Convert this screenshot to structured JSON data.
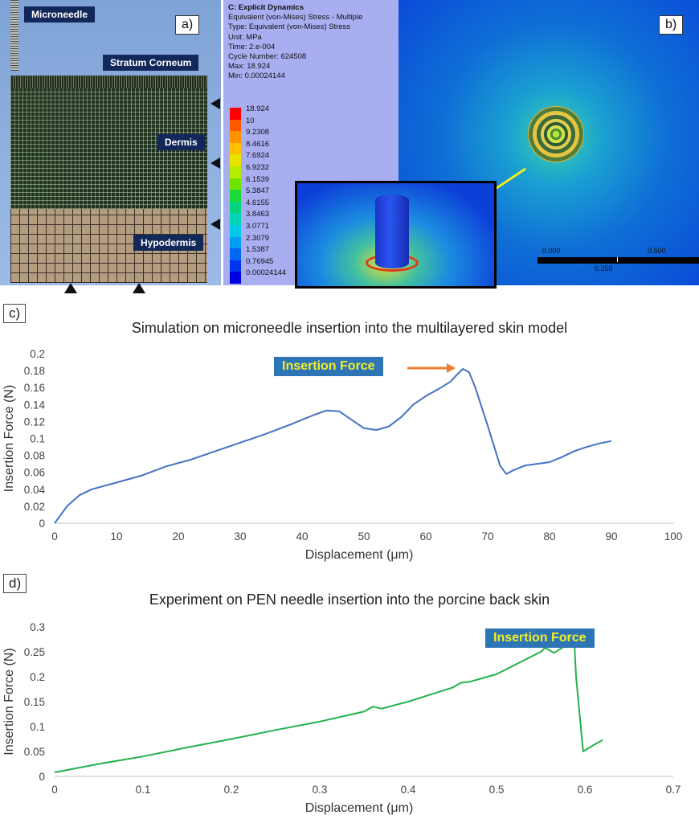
{
  "panel_a": {
    "letter": "a)",
    "labels": {
      "microneedle": "Microneedle",
      "stratum_corneum": "Stratum Corneum",
      "dermis": "Dermis",
      "hypodermis": "Hypodermis"
    },
    "colors": {
      "background": "#8fb0e0",
      "label_bg": "#12285a",
      "dermis_mesh": "#223222",
      "hypodermis_mesh": "#b39c80"
    }
  },
  "legend_panel": {
    "lines": [
      "C: Explicit Dynamics",
      "Equivalent (von-Mises) Stress - Multiple",
      "Type: Equivalent (von-Mises) Stress",
      "Unit: MPa",
      "Time: 2.e-004",
      "Cycle Number: 624508",
      "Max: 18.924",
      "Min: 0.00024144"
    ],
    "colorbar": [
      {
        "value": "18.924",
        "color": "#ff0000"
      },
      {
        "value": "10",
        "color": "#ff5a00"
      },
      {
        "value": "9.2308",
        "color": "#ff9400"
      },
      {
        "value": "8.4616",
        "color": "#ffc000"
      },
      {
        "value": "7.6924",
        "color": "#e8e400"
      },
      {
        "value": "6.9232",
        "color": "#b6ec00"
      },
      {
        "value": "6.1539",
        "color": "#6ee400"
      },
      {
        "value": "5.3847",
        "color": "#1ed83a"
      },
      {
        "value": "4.6155",
        "color": "#00d47c"
      },
      {
        "value": "3.8463",
        "color": "#00d6b6"
      },
      {
        "value": "3.0771",
        "color": "#00c8e6"
      },
      {
        "value": "2.3079",
        "color": "#009cf4"
      },
      {
        "value": "1.5387",
        "color": "#0068f4"
      },
      {
        "value": "0.76945",
        "color": "#0034f0"
      },
      {
        "value": "0.00024144",
        "color": "#0000e0"
      }
    ]
  },
  "panel_b": {
    "letter": "b)",
    "scale_ticks": [
      "0.000",
      "0.250",
      "0.500"
    ]
  },
  "chart_c": {
    "tag": "c)",
    "callout": "Insertion Force",
    "chart_data": {
      "type": "line",
      "title": "Simulation on microneedle insertion into the multilayered skin model",
      "xlabel": "Displacement (μm)",
      "ylabel": "Insertion Force (N)",
      "xlim": [
        0,
        100
      ],
      "ylim": [
        0,
        0.2
      ],
      "xticks": [
        "0",
        "10",
        "20",
        "30",
        "40",
        "50",
        "60",
        "70",
        "80",
        "90",
        "100"
      ],
      "yticks": [
        "0",
        "0.02",
        "0.04",
        "0.06",
        "0.08",
        "0.1",
        "0.12",
        "0.14",
        "0.16",
        "0.18",
        "0.2"
      ],
      "grid": false,
      "series": [
        {
          "color": "#4472c4",
          "x": [
            0,
            2,
            4,
            6,
            10,
            14,
            18,
            22,
            26,
            30,
            34,
            38,
            42,
            44,
            46,
            48,
            50,
            52,
            54,
            56,
            58,
            60,
            62,
            64,
            65,
            66,
            67,
            68,
            70,
            72,
            73,
            74,
            76,
            78,
            80,
            82,
            84,
            86,
            88,
            90
          ],
          "y": [
            0,
            0.02,
            0.033,
            0.04,
            0.048,
            0.056,
            0.067,
            0.075,
            0.085,
            0.095,
            0.105,
            0.116,
            0.128,
            0.133,
            0.132,
            0.122,
            0.112,
            0.11,
            0.114,
            0.125,
            0.14,
            0.15,
            0.158,
            0.167,
            0.175,
            0.182,
            0.178,
            0.16,
            0.115,
            0.068,
            0.058,
            0.062,
            0.068,
            0.07,
            0.072,
            0.078,
            0.085,
            0.09,
            0.094,
            0.097
          ]
        }
      ]
    }
  },
  "chart_d": {
    "tag": "d)",
    "callout": "Insertion Force",
    "chart_data": {
      "type": "line",
      "title": "Experiment on PEN needle insertion into the porcine back skin",
      "xlabel": "Displacement (μm)",
      "ylabel": "Insertion Force (N)",
      "xlim": [
        0,
        0.7
      ],
      "ylim": [
        0,
        0.3
      ],
      "xticks": [
        "0",
        "0.1",
        "0.2",
        "0.3",
        "0.4",
        "0.5",
        "0.6",
        "0.7"
      ],
      "yticks": [
        "0",
        "0.05",
        "0.1",
        "0.15",
        "0.2",
        "0.25",
        "0.3"
      ],
      "grid": false,
      "series": [
        {
          "color": "#22b14c",
          "x": [
            0,
            0.05,
            0.1,
            0.15,
            0.2,
            0.25,
            0.3,
            0.35,
            0.36,
            0.37,
            0.4,
            0.45,
            0.46,
            0.47,
            0.5,
            0.55,
            0.555,
            0.565,
            0.58,
            0.588,
            0.59,
            0.598,
            0.61,
            0.62
          ],
          "y": [
            0.008,
            0.025,
            0.04,
            0.058,
            0.075,
            0.093,
            0.11,
            0.13,
            0.14,
            0.136,
            0.15,
            0.178,
            0.188,
            0.19,
            0.205,
            0.25,
            0.258,
            0.248,
            0.264,
            0.27,
            0.2,
            0.05,
            0.063,
            0.073
          ]
        }
      ]
    }
  }
}
